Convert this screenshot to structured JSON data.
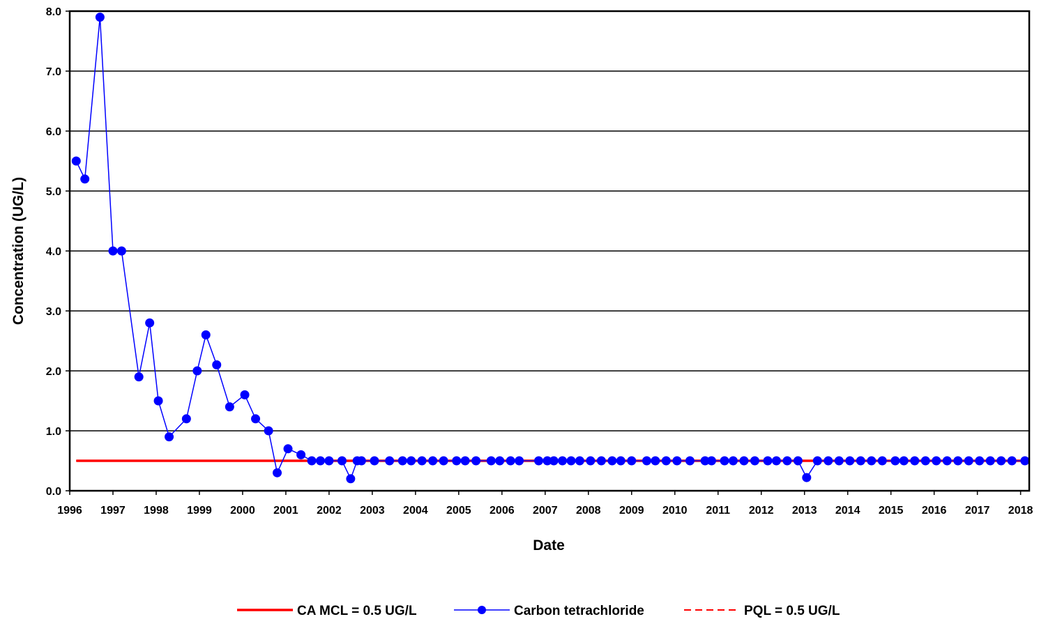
{
  "chart_data": {
    "type": "line",
    "title": "",
    "xlabel": "Date",
    "ylabel": "Concentration (UG/L)",
    "xlim": [
      1996,
      2018.2
    ],
    "ylim": [
      0,
      8
    ],
    "x_tick_labels": [
      "1996",
      "1997",
      "1998",
      "1999",
      "2000",
      "2001",
      "2002",
      "2003",
      "2004",
      "2005",
      "2006",
      "2007",
      "2008",
      "2009",
      "2010",
      "2011",
      "2012",
      "2013",
      "2014",
      "2015",
      "2016",
      "2017",
      "2018"
    ],
    "y_tick_labels": [
      "0.0",
      "1.0",
      "2.0",
      "3.0",
      "4.0",
      "5.0",
      "6.0",
      "7.0",
      "8.0"
    ],
    "grid": "horizontal",
    "legend_position": "bottom",
    "colors": {
      "mcl": "#ff0000",
      "series": "#0000ff",
      "pql": "#ff0000",
      "grid": "#000000"
    },
    "reference_lines": [
      {
        "name": "CA MCL = 0.5 UG/L",
        "value": 0.5,
        "style": "solid"
      },
      {
        "name": "PQL = 0.5 UG/L",
        "value": 0.5,
        "style": "dashed"
      }
    ],
    "series": [
      {
        "name": "Carbon tetrachloride",
        "x": [
          1996.15,
          1996.35,
          1996.7,
          1997.0,
          1997.2,
          1997.6,
          1997.85,
          1998.05,
          1998.3,
          1998.7,
          1998.95,
          1999.15,
          1999.4,
          1999.7,
          2000.05,
          2000.3,
          2000.6,
          2000.8,
          2001.05,
          2001.35,
          2001.6,
          2001.8,
          2002.0,
          2002.3,
          2002.5,
          2002.65,
          2002.75,
          2003.05,
          2003.4,
          2003.7,
          2003.9,
          2004.15,
          2004.4,
          2004.65,
          2004.95,
          2005.15,
          2005.4,
          2005.75,
          2005.95,
          2006.2,
          2006.4,
          2006.85,
          2007.05,
          2007.2,
          2007.4,
          2007.6,
          2007.8,
          2008.05,
          2008.3,
          2008.55,
          2008.75,
          2009.0,
          2009.35,
          2009.55,
          2009.8,
          2010.05,
          2010.35,
          2010.7,
          2010.85,
          2011.15,
          2011.35,
          2011.6,
          2011.85,
          2012.15,
          2012.35,
          2012.6,
          2012.85,
          2013.05,
          2013.3,
          2013.55,
          2013.8,
          2014.05,
          2014.3,
          2014.55,
          2014.8,
          2015.1,
          2015.3,
          2015.55,
          2015.8,
          2016.05,
          2016.3,
          2016.55,
          2016.8,
          2017.05,
          2017.3,
          2017.55,
          2017.8,
          2018.1
        ],
        "values": [
          5.5,
          5.2,
          7.9,
          4.0,
          4.0,
          1.9,
          2.8,
          1.5,
          0.9,
          1.2,
          2.0,
          2.6,
          2.1,
          1.4,
          1.6,
          1.2,
          1.0,
          0.3,
          0.7,
          0.6,
          0.5,
          0.5,
          0.5,
          0.5,
          0.2,
          0.5,
          0.5,
          0.5,
          0.5,
          0.5,
          0.5,
          0.5,
          0.5,
          0.5,
          0.5,
          0.5,
          0.5,
          0.5,
          0.5,
          0.5,
          0.5,
          0.5,
          0.5,
          0.5,
          0.5,
          0.5,
          0.5,
          0.5,
          0.5,
          0.5,
          0.5,
          0.5,
          0.5,
          0.5,
          0.5,
          0.5,
          0.5,
          0.5,
          0.5,
          0.5,
          0.5,
          0.5,
          0.5,
          0.5,
          0.5,
          0.5,
          0.5,
          0.22,
          0.5,
          0.5,
          0.5,
          0.5,
          0.5,
          0.5,
          0.5,
          0.5,
          0.5,
          0.5,
          0.5,
          0.5,
          0.5,
          0.5,
          0.5,
          0.5,
          0.5,
          0.5,
          0.5,
          0.5
        ]
      }
    ],
    "legend": [
      "CA MCL = 0.5 UG/L",
      "Carbon tetrachloride",
      "PQL = 0.5 UG/L"
    ]
  }
}
